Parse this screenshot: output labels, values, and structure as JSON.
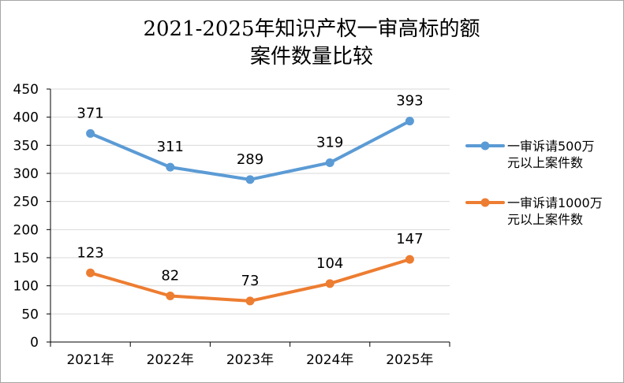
{
  "chart_data": {
    "type": "line",
    "title_lines": [
      "2021-2025年知识产权一审高标的额",
      "案件数量比较"
    ],
    "categories": [
      "2021年",
      "2022年",
      "2023年",
      "2024年",
      "2025年"
    ],
    "ylim": [
      0,
      450
    ],
    "yticks": [
      0,
      50,
      100,
      150,
      200,
      250,
      300,
      350,
      400,
      450
    ],
    "grid": true,
    "legend_position": "right",
    "series": [
      {
        "name": "一审诉请500万元以上案件数",
        "legend_lines": [
          "一审诉请500万",
          "元以上案件数"
        ],
        "color": "#5b9bd5",
        "values": [
          371,
          311,
          289,
          319,
          393
        ]
      },
      {
        "name": "一审诉请1000万元以上案件数",
        "legend_lines": [
          "一审诉请1000万",
          "元以上案件数"
        ],
        "color": "#ed7d31",
        "values": [
          123,
          82,
          73,
          104,
          147
        ]
      }
    ]
  }
}
